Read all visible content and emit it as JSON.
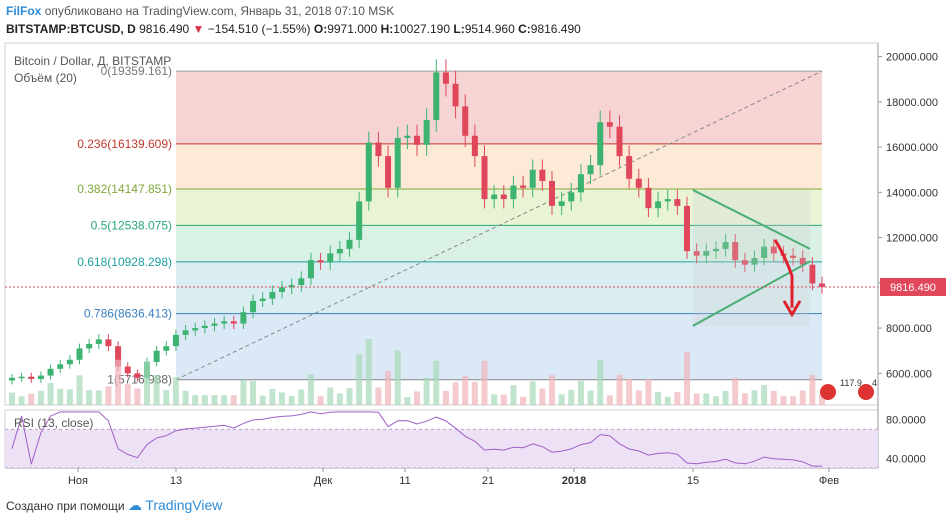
{
  "header": {
    "brand": "FilFox",
    "published": "опубликовано на TradingView.com, Январь 31, 2018 07:10 MSK",
    "symbol": "BITSTAMP:BTCUSD, D",
    "last": "9816.490",
    "change": "−154.510 (−1.55%)",
    "o_label": "O:",
    "o": "9971.000",
    "h_label": "H:",
    "h": "10027.190",
    "l_label": "L:",
    "l": "9514.960",
    "c_label": "C:",
    "c": "9816.490"
  },
  "legend": {
    "title": "Bitcoin / Dollar, Д, BITSTAMP",
    "volume": "Объём (20)",
    "rsi": "RSI (13, close)"
  },
  "footer": {
    "created": "Создано при помощи",
    "tv": "TradingView"
  },
  "colors": {
    "up": "#3cb371",
    "down": "#e0475b",
    "fib0": "#f4cccc",
    "fib236": "#fbe5cf",
    "fib382": "#e5f2cc",
    "fib5": "#d4efe0",
    "fib618": "#d3ebf0",
    "fib786": "#d5e5f5",
    "rsi_band": "#ede1f5",
    "rsi_line": "#a05fc8",
    "triangle": "#1fa65a",
    "arrow": "#e0202e"
  },
  "badges": {
    "left": "117.9",
    "right": "4"
  },
  "chart_data": {
    "type": "candlestick",
    "title": "Bitcoin / Dollar, Д, BITSTAMP",
    "ylim": [
      4600,
      20600
    ],
    "y_ticks": [
      "6000.000",
      "8000.000",
      "10000.000",
      "12000.000",
      "14000.000",
      "16000.000",
      "18000.000",
      "20000.000"
    ],
    "y_tick_values": [
      6000,
      8000,
      10000,
      12000,
      14000,
      16000,
      18000,
      20000
    ],
    "x_ticks": [
      "Ноя",
      "13",
      "Дек",
      "11",
      "21",
      "2018",
      "15",
      "Фев"
    ],
    "last_price_label": "9816.490",
    "last_price": 9816.49,
    "fib_levels": [
      {
        "label": "0(19359.161)",
        "value": 19359.161
      },
      {
        "label": "0.236(16139.609)",
        "value": 16139.609
      },
      {
        "label": "0.382(14147.851)",
        "value": 14147.851
      },
      {
        "label": "0.5(12538.075)",
        "value": 12538.075
      },
      {
        "label": "0.618(10928.298)",
        "value": 10928.298
      },
      {
        "label": "0.786(8636.413)",
        "value": 8636.413
      },
      {
        "label": "1(5716.988)",
        "value": 5716.988
      }
    ],
    "closes": [
      5800,
      5850,
      5750,
      5900,
      6200,
      6400,
      6600,
      7100,
      7300,
      7500,
      7200,
      6300,
      6000,
      5800,
      6500,
      7000,
      7200,
      7700,
      7900,
      8000,
      8100,
      8200,
      8300,
      8200,
      8700,
      9200,
      9300,
      9600,
      9800,
      9900,
      10200,
      11000,
      10900,
      11300,
      11500,
      11900,
      13600,
      16200,
      15600,
      14200,
      16400,
      16500,
      16100,
      17200,
      19300,
      18800,
      17800,
      16500,
      15600,
      13700,
      13900,
      13700,
      14300,
      14200,
      15000,
      14500,
      13400,
      13600,
      14000,
      14800,
      15200,
      17100,
      16900,
      15600,
      14600,
      14200,
      13300,
      13600,
      13700,
      13400,
      11400,
      11200,
      11400,
      11500,
      11800,
      11000,
      10800,
      11100,
      11600,
      11300,
      11200,
      11100,
      10800,
      9971,
      9816
    ],
    "volume_note": "Объём (20)",
    "rsi": {
      "label": "RSI (13, close)",
      "ylim": [
        30,
        90
      ],
      "y_ticks": [
        "40.0000",
        "80.0000"
      ],
      "y_tick_values": [
        40,
        80
      ],
      "band": [
        30,
        70
      ]
    }
  }
}
